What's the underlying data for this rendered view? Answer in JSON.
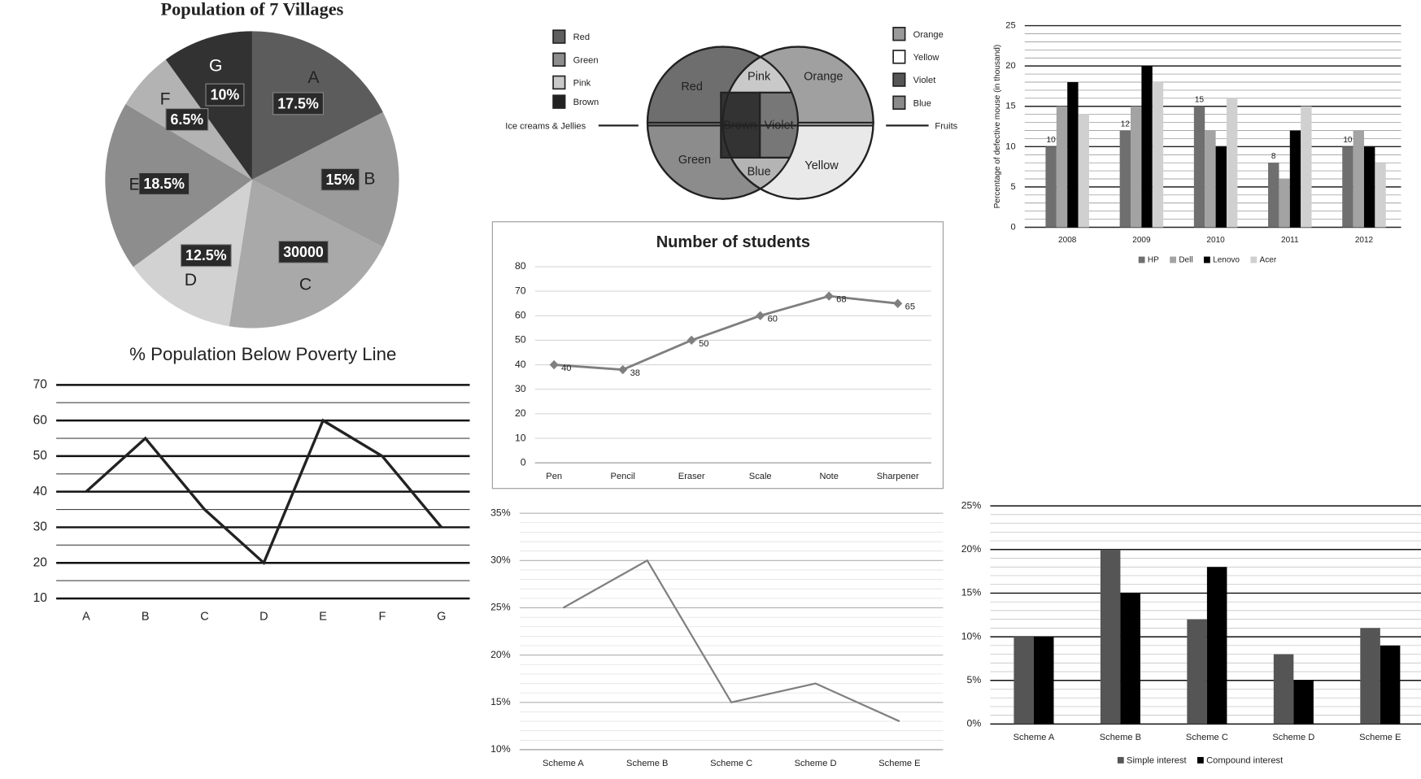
{
  "chart_data": [
    {
      "type": "pie",
      "title": "Population of 7 Villages",
      "categories": [
        "A",
        "B",
        "C",
        "D",
        "E",
        "F",
        "G"
      ],
      "values": [
        17.5,
        15,
        20,
        12.5,
        18.5,
        6.5,
        10
      ],
      "value_labels": [
        "17.5%",
        "15%",
        null,
        "12.5%",
        "18.5%",
        "6.5%",
        "10%"
      ],
      "annotations": [
        {
          "text": "30000",
          "at": "C"
        }
      ],
      "colors": [
        "#5c5c5c",
        "#9b9b9b",
        "#a9a9a9",
        "#d2d2d2",
        "#8d8d8d",
        "#b3b3b3",
        "#323232"
      ]
    },
    {
      "type": "line",
      "title": "% Population Below Poverty Line",
      "categories": [
        "A",
        "B",
        "C",
        "D",
        "E",
        "F",
        "G"
      ],
      "values": [
        40,
        55,
        35,
        20,
        60,
        50,
        30
      ],
      "color": "#222222",
      "ylim": [
        10,
        70
      ],
      "yticks": [
        10,
        20,
        30,
        40,
        50,
        60,
        70
      ],
      "grid": true
    },
    {
      "type": "line",
      "title": "Number of students",
      "categories": [
        "Pen",
        "Pencil",
        "Eraser",
        "Scale",
        "Note",
        "Sharpener"
      ],
      "values": [
        40,
        38,
        50,
        60,
        68,
        65
      ],
      "color": "#7f7f7f",
      "marker": "diamond",
      "data_labels": true,
      "ylim": [
        0,
        80
      ],
      "yticks": [
        0,
        10,
        20,
        30,
        40,
        50,
        60,
        70,
        80
      ],
      "grid": true
    },
    {
      "type": "bar",
      "ylabel": "Percentage of defective mouse (in thousand)",
      "categories": [
        "2008",
        "2009",
        "2010",
        "2011",
        "2012"
      ],
      "series": [
        {
          "name": "HP",
          "color": "#6f6f6f",
          "values": [
            10,
            12,
            15,
            8,
            10
          ],
          "data_labels": true
        },
        {
          "name": "Dell",
          "color": "#a3a3a3",
          "values": [
            15,
            15,
            12,
            6,
            12
          ]
        },
        {
          "name": "Lenovo",
          "color": "#000000",
          "values": [
            18,
            20,
            10,
            12,
            10
          ]
        },
        {
          "name": "Acer",
          "color": "#d0d0d0",
          "values": [
            14,
            18,
            16,
            15,
            8
          ]
        }
      ],
      "ylim": [
        0,
        25
      ],
      "yticks": [
        0,
        5,
        10,
        15,
        20,
        25
      ],
      "grid": true,
      "legend": "bottom"
    },
    {
      "type": "line",
      "categories": [
        "Scheme A",
        "Scheme B",
        "Scheme C",
        "Scheme D",
        "Scheme E"
      ],
      "values": [
        25,
        30,
        15,
        17,
        13
      ],
      "color": "#808080",
      "ylim": [
        10,
        35
      ],
      "yticks": [
        {
          "value": 10,
          "label": "10%"
        },
        {
          "value": 15,
          "label": "15%"
        },
        {
          "value": 20,
          "label": "20%"
        },
        {
          "value": 25,
          "label": "25%"
        },
        {
          "value": 30,
          "label": "30%"
        },
        {
          "value": 35,
          "label": "35%"
        }
      ],
      "grid": true
    },
    {
      "type": "bar",
      "categories": [
        "Scheme A",
        "Scheme B",
        "Scheme C",
        "Scheme D",
        "Scheme E"
      ],
      "series": [
        {
          "name": "Simple interest",
          "color": "#555555",
          "values": [
            10,
            20,
            12,
            8,
            11
          ]
        },
        {
          "name": "Compound interest",
          "color": "#000000",
          "values": [
            10,
            15,
            18,
            5,
            9
          ]
        }
      ],
      "ylim": [
        0,
        25
      ],
      "yticks": [
        {
          "value": 0,
          "label": "0%"
        },
        {
          "value": 5,
          "label": "5%"
        },
        {
          "value": 10,
          "label": "10%"
        },
        {
          "value": 15,
          "label": "15%"
        },
        {
          "value": 20,
          "label": "20%"
        },
        {
          "value": 25,
          "label": "25%"
        }
      ],
      "grid": true,
      "legend": "bottom"
    }
  ],
  "venn": {
    "left_label": "Ice creams & Jellies",
    "right_label": "Fruits",
    "legend_left": [
      "Red",
      "Green",
      "Pink",
      "Brown"
    ],
    "legend_right": [
      "Orange",
      "Yellow",
      "Violet",
      "Blue"
    ],
    "regions": {
      "red": "Red",
      "green": "Green",
      "pink": "Pink",
      "brown": "Brown",
      "orange": "Orange",
      "yellow": "Yellow",
      "violet": "Violet",
      "blue": "Blue"
    }
  }
}
